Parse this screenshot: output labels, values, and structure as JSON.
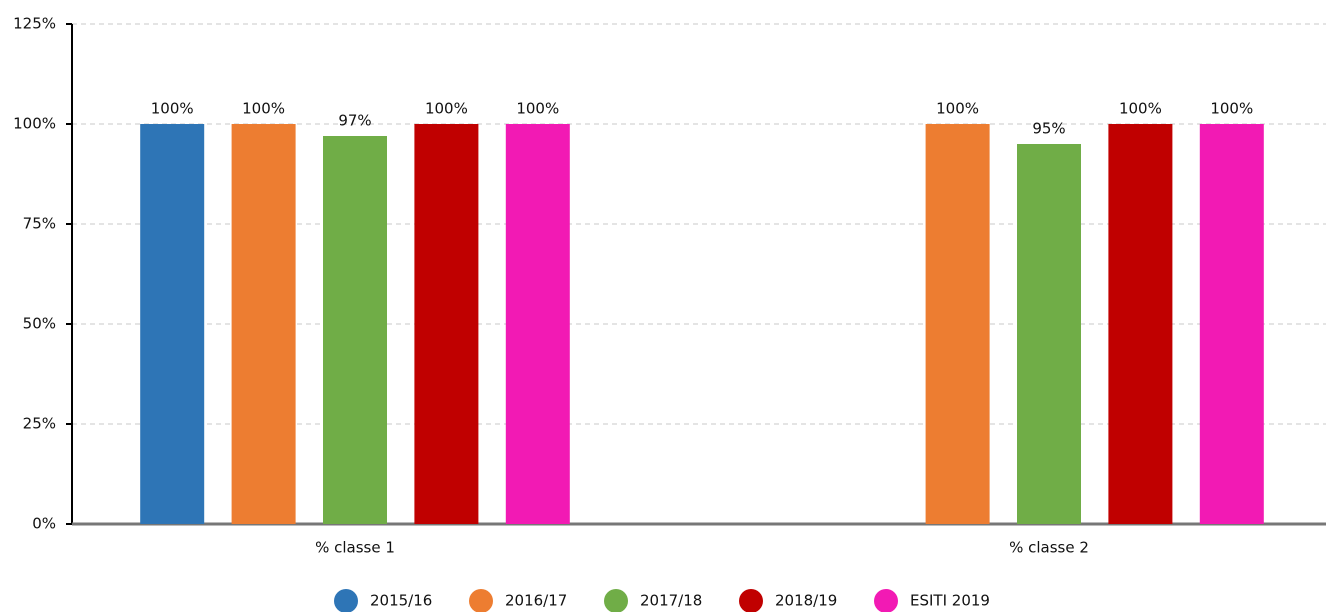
{
  "chart_data": {
    "type": "bar",
    "categories": [
      "% classe 1",
      "% classe 2"
    ],
    "series": [
      {
        "name": "2015/16",
        "color": "#2e75b6",
        "values": [
          100,
          null
        ],
        "value_labels": [
          "100%",
          null
        ]
      },
      {
        "name": "2016/17",
        "color": "#ed7d31",
        "values": [
          100,
          100
        ],
        "value_labels": [
          "100%",
          "100%"
        ]
      },
      {
        "name": "2017/18",
        "color": "#70ad47",
        "values": [
          97,
          95
        ],
        "value_labels": [
          "97%",
          "95%"
        ]
      },
      {
        "name": "2018/19",
        "color": "#c00000",
        "values": [
          100,
          100
        ],
        "value_labels": [
          "100%",
          "100%"
        ]
      },
      {
        "name": "ESITI 2019",
        "color": "#f21ab4",
        "values": [
          100,
          100
        ],
        "value_labels": [
          "100%",
          "100%"
        ]
      }
    ],
    "ylim": [
      0,
      125
    ],
    "yticks": [
      {
        "value": 0,
        "label": "0%"
      },
      {
        "value": 25,
        "label": "25%"
      },
      {
        "value": 50,
        "label": "50%"
      },
      {
        "value": 75,
        "label": "75%"
      },
      {
        "value": 100,
        "label": "100%"
      },
      {
        "value": 125,
        "label": "125%"
      }
    ],
    "grid": true,
    "legend": "bottom"
  }
}
